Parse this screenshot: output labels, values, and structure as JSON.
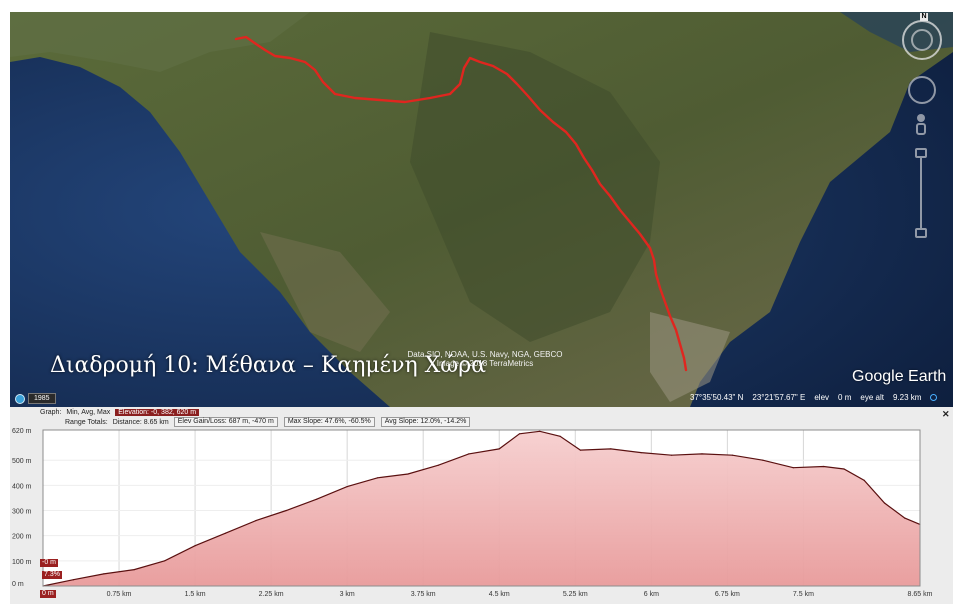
{
  "map": {
    "caption": "Διαδρομή 10: Μέθανα – Καημένη Χώρα",
    "attribution": [
      "Data SIO, NOAA, U.S. Navy, NGA, GEBCO",
      "Image © 2018 TerraMetrics"
    ],
    "brand": "Google Earth",
    "historical_year": "1985",
    "status": {
      "latitude": "37°35'50.43\" N",
      "longitude": "23°21'57.67\" E",
      "elev_label": "elev",
      "elev_value": "0 m",
      "eye_alt_label": "eye alt",
      "eye_alt_value": "9.23 km"
    },
    "compass_label": "N"
  },
  "profile": {
    "graph_label": "Graph:",
    "graph_modes": [
      "Min, Avg, Max"
    ],
    "elevation_stat": "Elevation: -0, 382, 620 m",
    "range_totals_label": "Range Totals:",
    "distance": "Distance: 8.65 km",
    "elev_gain_loss": "Elev Gain/Loss: 687 m, -470 m",
    "max_slope": "Max Slope: 47.6%, -60.5%",
    "avg_slope": "Avg Slope: 12.0%, -14.2%",
    "close_icon": "✕",
    "marker_elev": "-0 m",
    "marker_slope": "7.3%",
    "marker_dist": "0 m"
  },
  "chart_data": {
    "type": "area",
    "color": "#e89a9a",
    "line_color": "#5a1010",
    "ytick_labels": [
      "620 m",
      "500 m",
      "400 m",
      "300 m",
      "200 m",
      "100 m",
      "0 m"
    ],
    "yticks": [
      620,
      500,
      400,
      300,
      200,
      100,
      0
    ],
    "xtick_labels": [
      "0 m",
      "0.75 km",
      "1.5 km",
      "2.25 km",
      "3 km",
      "3.75 km",
      "4.5 km",
      "5.25 km",
      "6 km",
      "6.75 km",
      "7.5 km",
      "8.65 km"
    ],
    "xticks": [
      0,
      0.75,
      1.5,
      2.25,
      3,
      3.75,
      4.5,
      5.25,
      6,
      6.75,
      7.5,
      8.65
    ],
    "ylim": [
      0,
      620
    ],
    "xlim": [
      0,
      8.65
    ],
    "x": [
      0,
      0.3,
      0.6,
      0.9,
      1.2,
      1.5,
      1.8,
      2.1,
      2.4,
      2.7,
      3.0,
      3.3,
      3.6,
      3.9,
      4.2,
      4.5,
      4.7,
      4.9,
      5.1,
      5.3,
      5.6,
      5.9,
      6.2,
      6.5,
      6.8,
      7.1,
      7.4,
      7.7,
      7.9,
      8.1,
      8.3,
      8.5,
      8.65
    ],
    "y": [
      0,
      25,
      48,
      65,
      100,
      160,
      210,
      260,
      300,
      345,
      395,
      430,
      445,
      480,
      525,
      545,
      605,
      615,
      595,
      540,
      545,
      530,
      520,
      525,
      520,
      500,
      470,
      475,
      465,
      420,
      330,
      270,
      245
    ]
  }
}
